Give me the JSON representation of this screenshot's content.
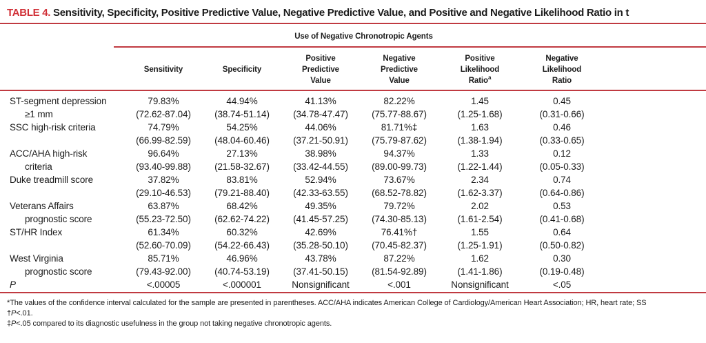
{
  "colors": {
    "rule_red": "#c03a41",
    "table_label_red": "#d02f36",
    "text": "#1b1b1b"
  },
  "table": {
    "label": "TABLE 4.",
    "title": "Sensitivity, Specificity, Positive Predictive Value, Negative Predictive Value, and Positive and Negative Likelihood Ratio in t",
    "spanner": "Use of Negative Chronotropic Agents",
    "columns": [
      {
        "lines": [
          "Sensitivity"
        ],
        "sup": ""
      },
      {
        "lines": [
          "Specificity"
        ],
        "sup": ""
      },
      {
        "lines": [
          "Positive",
          "Predictive",
          "Value"
        ],
        "sup": ""
      },
      {
        "lines": [
          "Negative",
          "Predictive",
          "Value"
        ],
        "sup": ""
      },
      {
        "lines": [
          "Positive",
          "Likelihood",
          "Ratio"
        ],
        "sup": "a"
      },
      {
        "lines": [
          "Negative",
          "Likelihood",
          "Ratio"
        ],
        "sup": ""
      }
    ],
    "rows": [
      {
        "label1": "ST-segment depression",
        "label2": "≥1 mm",
        "cells": [
          [
            "79.83%",
            "(72.62-87.04)"
          ],
          [
            "44.94%",
            "(38.74-51.14)"
          ],
          [
            "41.13%",
            "(34.78-47.47)"
          ],
          [
            "82.22%",
            "(75.77-88.67)"
          ],
          [
            "1.45",
            "(1.25-1.68)"
          ],
          [
            "0.45",
            "(0.31-0.66)"
          ]
        ]
      },
      {
        "label1": "SSC high-risk criteria",
        "label2": "",
        "cells": [
          [
            "74.79%",
            "(66.99-82.59)"
          ],
          [
            "54.25%",
            "(48.04-60.46)"
          ],
          [
            "44.06%",
            "(37.21-50.91)"
          ],
          [
            "81.71%‡",
            "(75.79-87.62)"
          ],
          [
            "1.63",
            "(1.38-1.94)"
          ],
          [
            "0.46",
            "(0.33-0.65)"
          ]
        ]
      },
      {
        "label1": "ACC/AHA high-risk",
        "label2": "criteria",
        "cells": [
          [
            "96.64%",
            "(93.40-99.88)"
          ],
          [
            "27.13%",
            "(21.58-32.67)"
          ],
          [
            "38.98%",
            "(33.42-44.55)"
          ],
          [
            "94.37%",
            "(89.00-99.73)"
          ],
          [
            "1.33",
            "(1.22-1.44)"
          ],
          [
            "0.12",
            "(0.05-0.33)"
          ]
        ]
      },
      {
        "label1": "Duke treadmill score",
        "label2": "",
        "cells": [
          [
            "37.82%",
            "(29.10-46.53)"
          ],
          [
            "83.81%",
            "(79.21-88.40)"
          ],
          [
            "52.94%",
            "(42.33-63.55)"
          ],
          [
            "73.67%",
            "(68.52-78.82)"
          ],
          [
            "2.34",
            "(1.62-3.37)"
          ],
          [
            "0.74",
            "(0.64-0.86)"
          ]
        ]
      },
      {
        "label1": "Veterans Affairs",
        "label2": "prognostic score",
        "cells": [
          [
            "63.87%",
            "(55.23-72.50)"
          ],
          [
            "68.42%",
            "(62.62-74.22)"
          ],
          [
            "49.35%",
            "(41.45-57.25)"
          ],
          [
            "79.72%",
            "(74.30-85.13)"
          ],
          [
            "2.02",
            "(1.61-2.54)"
          ],
          [
            "0.53",
            "(0.41-0.68)"
          ]
        ]
      },
      {
        "label1": "ST/HR Index",
        "label2": "",
        "cells": [
          [
            "61.34%",
            "(52.60-70.09)"
          ],
          [
            "60.32%",
            "(54.22-66.43)"
          ],
          [
            "42.69%",
            "(35.28-50.10)"
          ],
          [
            "76.41%†",
            "(70.45-82.37)"
          ],
          [
            "1.55",
            "(1.25-1.91)"
          ],
          [
            "0.64",
            "(0.50-0.82)"
          ]
        ]
      },
      {
        "label1": "West Virginia",
        "label2": "prognostic score",
        "cells": [
          [
            "85.71%",
            "(79.43-92.00)"
          ],
          [
            "46.96%",
            "(40.74-53.19)"
          ],
          [
            "43.78%",
            "(37.41-50.15)"
          ],
          [
            "87.22%",
            "(81.54-92.89)"
          ],
          [
            "1.62",
            "(1.41-1.86)"
          ],
          [
            "0.30",
            "(0.19-0.48)"
          ]
        ]
      },
      {
        "label1": "P",
        "italic": true,
        "single": true,
        "cells": [
          [
            "<.00005"
          ],
          [
            "<.000001"
          ],
          [
            "Nonsignificant"
          ],
          [
            "<.001"
          ],
          [
            "Nonsignificant"
          ],
          [
            "<.05"
          ]
        ]
      }
    ],
    "footnotes": [
      {
        "marker": "*",
        "pre": "The values of the confidence interval calculated for the sample are presented in parentheses. ACC/AHA indicates American College of Cardiology/American Heart Association; HR, heart rate; SS",
        "italic": "",
        "post": ""
      },
      {
        "marker": "†",
        "pre": "",
        "italic": "P",
        "post": "<.01."
      },
      {
        "marker": "‡",
        "pre": "",
        "italic": "P",
        "post": "<.05 compared to its diagnostic usefulness in the group not taking negative chronotropic agents."
      }
    ]
  }
}
